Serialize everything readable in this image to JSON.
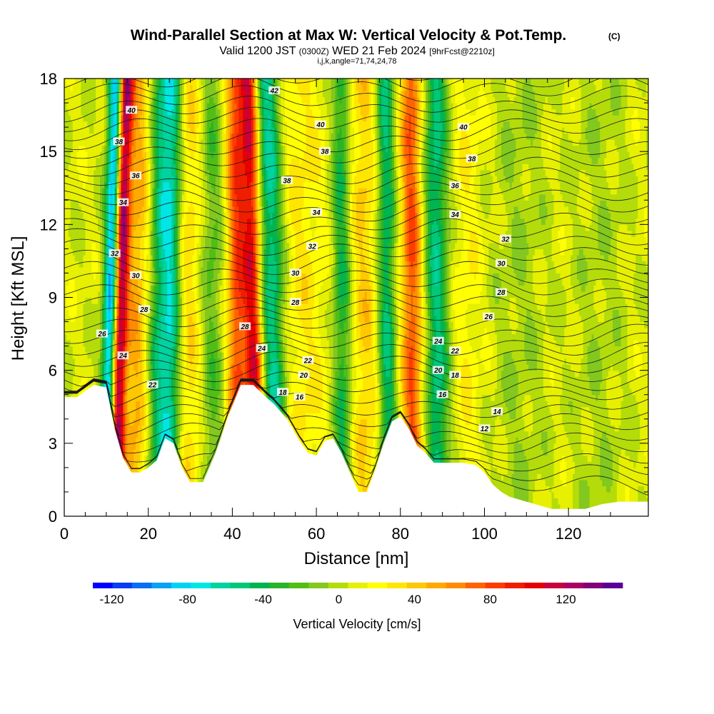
{
  "chart_data": {
    "type": "heatmap",
    "title": "Wind-Parallel Section at Max W: Vertical Velocity & Pot.Temp.",
    "title_mark": "(C)",
    "subtitle": {
      "valid": "Valid 1200 JST",
      "utc": "(0300Z)",
      "date": "WED 21 Feb 2024",
      "forecast": "[9hrFcst@2210z]"
    },
    "indices": "i,j,k,angle=71,74,24,78",
    "xlabel": "Distance [nm]",
    "ylabel": "Height [Kft MSL]",
    "xlim": [
      0,
      139
    ],
    "ylim": [
      0,
      18
    ],
    "x_ticks": [
      "0",
      "20",
      "40",
      "60",
      "80",
      "100",
      "120"
    ],
    "y_ticks": [
      "0",
      "3",
      "6",
      "9",
      "12",
      "15",
      "18"
    ],
    "colorbar": {
      "label": "Vertical Velocity [cm/s]",
      "ticks": [
        "-120",
        "-80",
        "-40",
        "0",
        "40",
        "80",
        "120"
      ],
      "range": [
        -130,
        150
      ],
      "colors": [
        "#0000ff",
        "#0a3cf5",
        "#0a6ef5",
        "#0aa0f5",
        "#00d2f5",
        "#00e6e6",
        "#00d2a0",
        "#00c878",
        "#00b450",
        "#28b428",
        "#50be14",
        "#82c81e",
        "#b4dc0a",
        "#e6f000",
        "#ffff00",
        "#ffe600",
        "#ffc800",
        "#ffaa00",
        "#ff8c00",
        "#ff6400",
        "#ff3c00",
        "#f01e00",
        "#e60000",
        "#c8003c",
        "#aa0064",
        "#820078",
        "#5a0096"
      ]
    },
    "terrain_kft": [
      [
        0,
        4.9
      ],
      [
        3,
        4.9
      ],
      [
        7,
        5.4
      ],
      [
        10,
        5.3
      ],
      [
        12,
        3.6
      ],
      [
        14,
        2.4
      ],
      [
        16,
        1.8
      ],
      [
        18,
        1.8
      ],
      [
        20,
        2.0
      ],
      [
        22,
        2.3
      ],
      [
        24,
        3.2
      ],
      [
        26,
        3.0
      ],
      [
        28,
        2.0
      ],
      [
        30,
        1.4
      ],
      [
        33,
        1.4
      ],
      [
        36,
        2.6
      ],
      [
        39,
        4.1
      ],
      [
        42,
        5.4
      ],
      [
        45,
        5.4
      ],
      [
        48,
        4.9
      ],
      [
        50,
        4.6
      ],
      [
        53,
        4.0
      ],
      [
        56,
        3.1
      ],
      [
        58,
        2.6
      ],
      [
        60,
        2.5
      ],
      [
        62,
        3.1
      ],
      [
        64,
        3.2
      ],
      [
        66,
        2.6
      ],
      [
        68,
        1.8
      ],
      [
        70,
        1.0
      ],
      [
        72,
        1.0
      ],
      [
        74,
        1.9
      ],
      [
        76,
        3.0
      ],
      [
        78,
        3.9
      ],
      [
        80,
        4.1
      ],
      [
        82,
        3.6
      ],
      [
        84,
        2.9
      ],
      [
        86,
        2.6
      ],
      [
        88,
        2.2
      ],
      [
        91,
        2.2
      ],
      [
        95,
        2.2
      ],
      [
        98,
        2.1
      ],
      [
        100,
        1.8
      ],
      [
        102,
        1.3
      ],
      [
        104,
        1.0
      ],
      [
        106,
        0.8
      ],
      [
        110,
        0.6
      ],
      [
        112,
        0.5
      ],
      [
        116,
        0.3
      ],
      [
        120,
        0.3
      ],
      [
        124,
        0.3
      ],
      [
        128,
        0.5
      ],
      [
        132,
        0.6
      ],
      [
        139,
        0.6
      ]
    ],
    "velocity_bands": [
      {
        "x_base": 10.0,
        "tilt": 0.14,
        "width": 1.8,
        "w": -120
      },
      {
        "x_base": 12.0,
        "tilt": 0.14,
        "width": 1.8,
        "w": 130
      },
      {
        "x_base": 16.5,
        "tilt": 0.08,
        "width": 3.0,
        "w": 40
      },
      {
        "x_base": 21.5,
        "tilt": 0.07,
        "width": 2.2,
        "w": -40
      },
      {
        "x_base": 25.0,
        "tilt": 0.04,
        "width": 2.6,
        "w": -80
      },
      {
        "x_base": 29.0,
        "tilt": 0.02,
        "width": 4.0,
        "w": 30
      },
      {
        "x_base": 35.0,
        "tilt": 0.0,
        "width": 3.0,
        "w": -30
      },
      {
        "x_base": 41.5,
        "tilt": -0.05,
        "width": 2.4,
        "w": 70
      },
      {
        "x_base": 46.0,
        "tilt": -0.12,
        "width": 2.2,
        "w": 95
      },
      {
        "x_base": 50.5,
        "tilt": -0.12,
        "width": 3.0,
        "w": -70
      },
      {
        "x_base": 57.0,
        "tilt": -0.05,
        "width": 6.0,
        "w": 20
      },
      {
        "x_base": 66.5,
        "tilt": -0.04,
        "width": 2.2,
        "w": -50
      },
      {
        "x_base": 72.0,
        "tilt": -0.05,
        "width": 4.0,
        "w": 30
      },
      {
        "x_base": 77.0,
        "tilt": -0.04,
        "width": 2.2,
        "w": -60
      },
      {
        "x_base": 83.0,
        "tilt": -0.03,
        "width": 2.5,
        "w": 70
      },
      {
        "x_base": 89.0,
        "tilt": -0.04,
        "width": 2.8,
        "w": -60
      },
      {
        "x_base": 96.0,
        "tilt": 0.0,
        "width": 3.5,
        "w": 15
      },
      {
        "x_base": 108.0,
        "tilt": 0.02,
        "width": 6.0,
        "w": -12
      },
      {
        "x_base": 127.0,
        "tilt": 0.03,
        "width": 6.0,
        "w": -10
      }
    ],
    "theta_labels": [
      {
        "text": "42",
        "x": 50,
        "y": 17.5
      },
      {
        "text": "40",
        "x": 16,
        "y": 16.7
      },
      {
        "text": "40",
        "x": 61,
        "y": 16.1
      },
      {
        "text": "40",
        "x": 95,
        "y": 16.0
      },
      {
        "text": "38",
        "x": 13,
        "y": 15.4
      },
      {
        "text": "38",
        "x": 62,
        "y": 15.0
      },
      {
        "text": "38",
        "x": 97,
        "y": 14.7
      },
      {
        "text": "36",
        "x": 17,
        "y": 14.0
      },
      {
        "text": "38",
        "x": 53,
        "y": 13.8
      },
      {
        "text": "36",
        "x": 93,
        "y": 13.6
      },
      {
        "text": "34",
        "x": 14,
        "y": 12.9
      },
      {
        "text": "34",
        "x": 60,
        "y": 12.5
      },
      {
        "text": "34",
        "x": 93,
        "y": 12.4
      },
      {
        "text": "32",
        "x": 105,
        "y": 11.4
      },
      {
        "text": "32",
        "x": 59,
        "y": 11.1
      },
      {
        "text": "32",
        "x": 12,
        "y": 10.8
      },
      {
        "text": "30",
        "x": 104,
        "y": 10.4
      },
      {
        "text": "30",
        "x": 55,
        "y": 10.0
      },
      {
        "text": "30",
        "x": 17,
        "y": 9.9
      },
      {
        "text": "28",
        "x": 104,
        "y": 9.2
      },
      {
        "text": "28",
        "x": 55,
        "y": 8.8
      },
      {
        "text": "28",
        "x": 19,
        "y": 8.5
      },
      {
        "text": "26",
        "x": 101,
        "y": 8.2
      },
      {
        "text": "28",
        "x": 43,
        "y": 7.8
      },
      {
        "text": "26",
        "x": 9,
        "y": 7.5
      },
      {
        "text": "24",
        "x": 89,
        "y": 7.2
      },
      {
        "text": "24",
        "x": 47,
        "y": 6.9
      },
      {
        "text": "22",
        "x": 93,
        "y": 6.8
      },
      {
        "text": "24",
        "x": 14,
        "y": 6.6
      },
      {
        "text": "22",
        "x": 58,
        "y": 6.4
      },
      {
        "text": "20",
        "x": 89,
        "y": 6.0
      },
      {
        "text": "18",
        "x": 93,
        "y": 5.8
      },
      {
        "text": "20",
        "x": 57,
        "y": 5.8
      },
      {
        "text": "22",
        "x": 21,
        "y": 5.4
      },
      {
        "text": "18",
        "x": 52,
        "y": 5.1
      },
      {
        "text": "16",
        "x": 90,
        "y": 5.0
      },
      {
        "text": "16",
        "x": 56,
        "y": 4.9
      },
      {
        "text": "14",
        "x": 103,
        "y": 4.3
      },
      {
        "text": "12",
        "x": 100,
        "y": 3.6
      }
    ]
  }
}
